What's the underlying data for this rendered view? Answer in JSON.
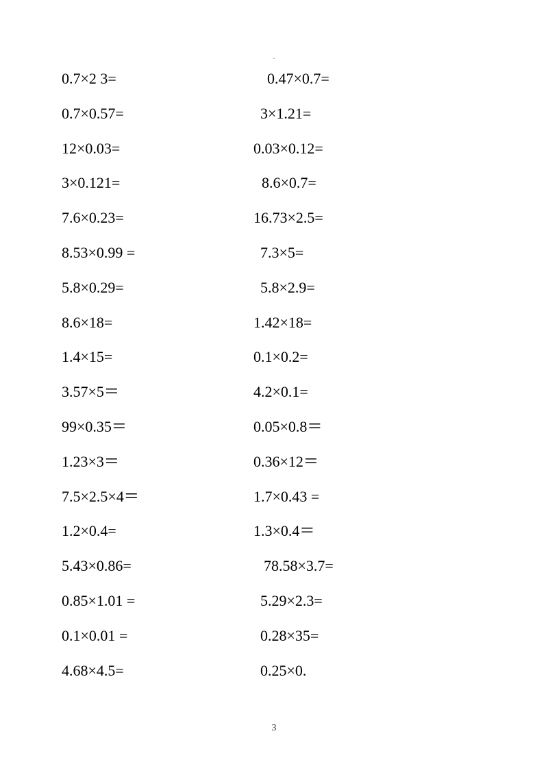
{
  "page_number": "3",
  "top_mark": ".",
  "text_color": "#000000",
  "background_color": "#ffffff",
  "font_size_pt": 16,
  "font_family": "SimSun",
  "rows": [
    {
      "left": "0.7×2 3=",
      "right": "0.47×0.7=",
      "right_indent": 20
    },
    {
      "left": "0.7×0.57=",
      "right": "3×1.21=",
      "right_indent": 10
    },
    {
      "left": "12×0.03=",
      "right": "0.03×0.12=",
      "right_indent": -18
    },
    {
      "left": "3×0.121=",
      "right": "8.6×0.7=",
      "right_indent": 12
    },
    {
      "left": "7.6×0.23=",
      "right": "16.73×2.5=",
      "right_indent": 0
    },
    {
      "left": "8.53×0.99 =",
      "right": "7.3×5=",
      "right_indent": 10
    },
    {
      "left": "5.8×0.29=",
      "right": "5.8×2.9=",
      "right_indent": 10
    },
    {
      "left": "8.6×18=",
      "right": "1.42×18=",
      "right_indent": 0
    },
    {
      "left": "1.4×15=",
      "right": "0.1×0.2=",
      "right_indent": 0
    },
    {
      "left": "3.57×5＝",
      "right": "4.2×0.1=",
      "right_indent": 0
    },
    {
      "left": "99×0.35＝",
      "right": "0.05×0.8＝",
      "right_indent": 0
    },
    {
      "left": "1.23×3＝",
      "right": "0.36×12＝",
      "right_indent": 0
    },
    {
      "left": "7.5×2.5×4＝",
      "right": "1.7×0.43 =",
      "right_indent": 0
    },
    {
      "left": "1.2×0.4=",
      "right": "1.3×0.4＝",
      "right_indent": 0
    },
    {
      "left": "5.43×0.86=",
      "right": "78.58×3.7=",
      "right_indent": 15
    },
    {
      "left": "0.85×1.01 =",
      "right": "5.29×2.3=",
      "right_indent": 10
    },
    {
      "left": "0.1×0.01 =",
      "right": "0.28×35=",
      "right_indent": 10
    },
    {
      "left": "4.68×4.5=",
      "right": "0.25×0.",
      "right_indent": 10
    }
  ]
}
